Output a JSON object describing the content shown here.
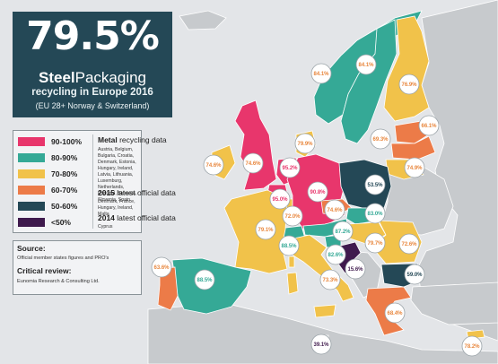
{
  "hero": {
    "headline": "79.5%",
    "brand_strong": "Steel",
    "brand_light": "Packaging",
    "subtitle": "recycling in Europe 2016",
    "scope": "(EU 28+ Norway & Switzerland)"
  },
  "legend": {
    "items": [
      {
        "label": "90-100%",
        "color": "#e8366c"
      },
      {
        "label": "80-90%",
        "color": "#35a996"
      },
      {
        "label": "70-80%",
        "color": "#f1c24a"
      },
      {
        "label": "60-70%",
        "color": "#ec7b48"
      },
      {
        "label": "50-60%",
        "color": "#244856"
      },
      {
        "label": "<50%",
        "color": "#3f1a4d"
      }
    ],
    "heading_strong": "Metal",
    "heading_rest": " recycling data",
    "countries_main": "Austria, Belgium, Bulgaria, Croatia, Denmark, Estonia, Hungary, Ireland, Latvia, Lithuania, Luxemburg, Netherlands, Portugal, Slovakia, Slovenia, Spain.",
    "official_2015_year": "2015",
    "official_2015_rest": " latest official data",
    "countries_2015": "Denmark, France, Hungary, Ireland, Malta",
    "official_2014_year": "2014",
    "official_2014_rest": " latest official data",
    "countries_2014": "Cyprus"
  },
  "source": {
    "title": "Source:",
    "text": "Official member states figures and PRO's",
    "review_title": "Critical review:",
    "review_text": "Eunomia Research & Consulting Ltd."
  },
  "colors": {
    "sea": "#e3e5e8",
    "land_grey": "#c7cacd",
    "border": "#ffffff",
    "pin_fill": "#ffffff",
    "pin_stroke": "#9aa3a8",
    "label_orange": "#e8873e"
  },
  "map_labels": [
    {
      "value": "84.1%",
      "country": "Norway"
    },
    {
      "value": "84.1%",
      "country": "Sweden"
    },
    {
      "value": "76.9%",
      "country": "Finland"
    },
    {
      "value": "66.1%",
      "country": "Estonia"
    },
    {
      "value": "69.3%",
      "country": "Latvia"
    },
    {
      "value": "74.9%",
      "country": "Lithuania"
    },
    {
      "value": "74.6%",
      "country": "Ireland"
    },
    {
      "value": "74.6%",
      "country": "United Kingdom"
    },
    {
      "value": "79.9%",
      "country": "Denmark"
    },
    {
      "value": "95.2%",
      "country": "Netherlands"
    },
    {
      "value": "90.8%",
      "country": "Germany"
    },
    {
      "value": "53.5%",
      "country": "Poland"
    },
    {
      "value": "95.0%",
      "country": "Belgium"
    },
    {
      "value": "72.0%",
      "country": "Luxembourg"
    },
    {
      "value": "74.6%",
      "country": "Czechia"
    },
    {
      "value": "83.0%",
      "country": "Slovakia"
    },
    {
      "value": "79.1%",
      "country": "France"
    },
    {
      "value": "88.5%",
      "country": "Switzerland"
    },
    {
      "value": "87.2%",
      "country": "Austria"
    },
    {
      "value": "82.6%",
      "country": "Slovenia"
    },
    {
      "value": "15.6%",
      "country": "Croatia"
    },
    {
      "value": "79.7%",
      "country": "Hungary"
    },
    {
      "value": "72.6%",
      "country": "Romania"
    },
    {
      "value": "63.6%",
      "country": "Portugal"
    },
    {
      "value": "88.5%",
      "country": "Spain"
    },
    {
      "value": "73.3%",
      "country": "Italy"
    },
    {
      "value": "59.0%",
      "country": "Bulgaria"
    },
    {
      "value": "68.4%",
      "country": "Greece"
    },
    {
      "value": "39.1%",
      "country": "Malta"
    },
    {
      "value": "78.2%",
      "country": "Cyprus"
    }
  ]
}
